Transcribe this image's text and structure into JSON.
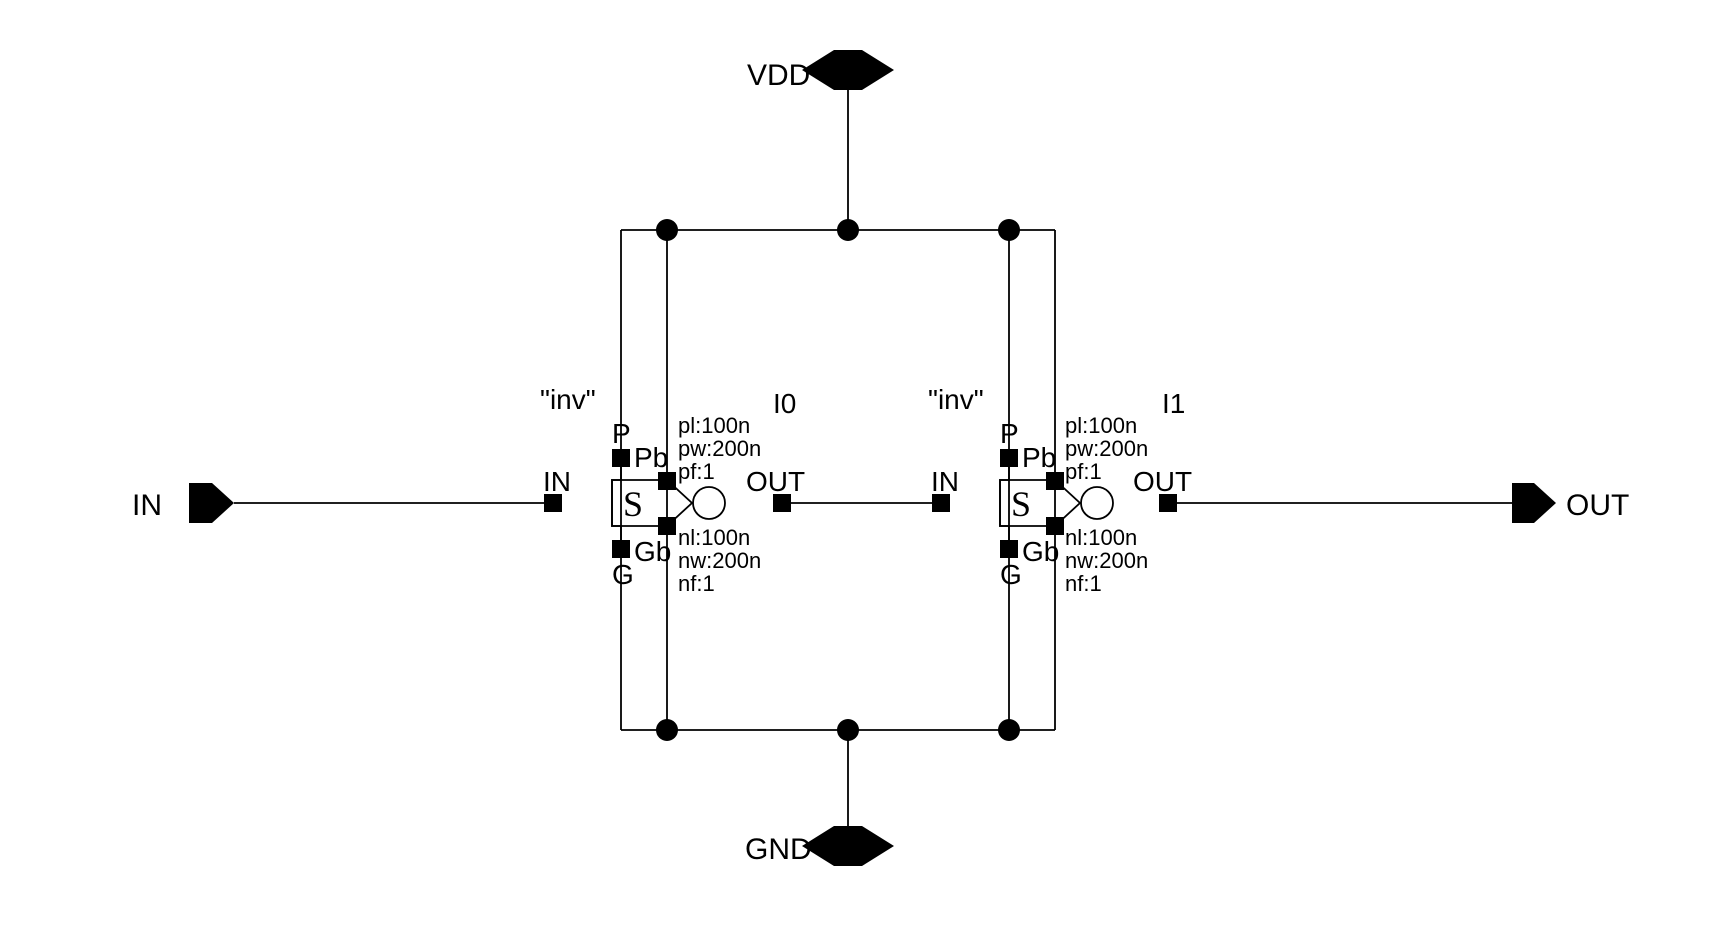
{
  "schematic": {
    "ports": {
      "in": "IN",
      "out": "OUT",
      "vdd": "VDD",
      "gnd": "GND"
    },
    "instances": [
      {
        "name": "I0",
        "cell": "\"inv\"",
        "symbol_letter": "S",
        "pins": {
          "in": "IN",
          "out": "OUT",
          "p": "P",
          "pb": "Pb",
          "g": "G",
          "gb": "Gb"
        },
        "params_p": [
          "pl:100n",
          "pw:200n",
          "pf:1"
        ],
        "params_n": [
          "nl:100n",
          "nw:200n",
          "nf:1"
        ]
      },
      {
        "name": "I1",
        "cell": "\"inv\"",
        "symbol_letter": "S",
        "pins": {
          "in": "IN",
          "out": "OUT",
          "p": "P",
          "pb": "Pb",
          "g": "G",
          "gb": "Gb"
        },
        "params_p": [
          "pl:100n",
          "pw:200n",
          "pf:1"
        ],
        "params_n": [
          "nl:100n",
          "nw:200n",
          "nf:1"
        ]
      }
    ]
  }
}
